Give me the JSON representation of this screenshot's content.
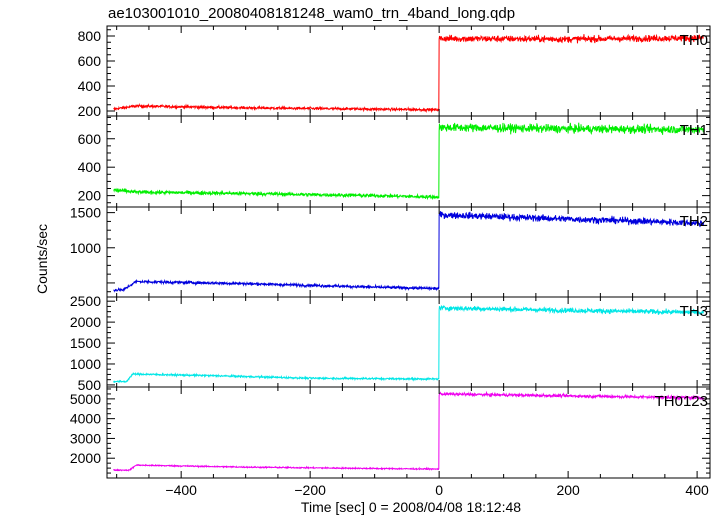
{
  "chart_data": {
    "type": "line",
    "title": "ae103001010_20080408181248_wam0_trn_4band_long.qdp",
    "xlabel": "Time [sec] 0 = 2008/04/08 18:12:48",
    "ylabel": "Counts/sec",
    "xlim": [
      -515,
      420
    ],
    "xticks": [
      -400,
      -200,
      0,
      200,
      400
    ],
    "xtick_labels": [
      "−400",
      "−200",
      "0",
      "200",
      "400"
    ],
    "step_time": 0,
    "start_time": -505,
    "end_time": 410,
    "grid": false,
    "panels": [
      {
        "name": "TH0",
        "color": "#ff0000",
        "ylim": [
          160,
          880
        ],
        "yticks": [
          200,
          400,
          600,
          800
        ],
        "pre_level": [
          [
            -505,
            215
          ],
          [
            -470,
            240
          ],
          [
            -300,
            225
          ],
          [
            -100,
            215
          ],
          [
            -1,
            210
          ]
        ],
        "post_level": [
          [
            0,
            780
          ],
          [
            200,
            775
          ],
          [
            410,
            785
          ]
        ],
        "noise_pre": 10,
        "noise_post": 25
      },
      {
        "name": "TH1",
        "color": "#00ee00",
        "ylim": [
          120,
          760
        ],
        "yticks": [
          200,
          400,
          600
        ],
        "pre_level": [
          [
            -505,
            240
          ],
          [
            -470,
            225
          ],
          [
            -300,
            215
          ],
          [
            -100,
            200
          ],
          [
            -1,
            190
          ]
        ],
        "post_level": [
          [
            0,
            680
          ],
          [
            200,
            670
          ],
          [
            410,
            665
          ]
        ],
        "noise_pre": 12,
        "noise_post": 28
      },
      {
        "name": "TH2",
        "color": "#0000dd",
        "ylim": [
          300,
          1580
        ],
        "yticks": [
          500,
          1000,
          1500
        ],
        "tick_labels_override": {
          "500": ""
        },
        "pre_level": [
          [
            -505,
            400
          ],
          [
            -490,
            400
          ],
          [
            -470,
            520
          ],
          [
            -300,
            490
          ],
          [
            -100,
            440
          ],
          [
            -1,
            420
          ]
        ],
        "post_level": [
          [
            0,
            1470
          ],
          [
            200,
            1410
          ],
          [
            410,
            1350
          ]
        ],
        "noise_pre": 18,
        "noise_post": 45
      },
      {
        "name": "TH3",
        "color": "#00e6e6",
        "ylim": [
          450,
          2600
        ],
        "yticks": [
          500,
          1000,
          1500,
          2000,
          2500
        ],
        "pre_level": [
          [
            -505,
            580
          ],
          [
            -485,
            580
          ],
          [
            -475,
            760
          ],
          [
            -350,
            720
          ],
          [
            -200,
            660
          ],
          [
            -1,
            640
          ]
        ],
        "post_level": [
          [
            0,
            2340
          ],
          [
            200,
            2280
          ],
          [
            410,
            2230
          ]
        ],
        "noise_pre": 20,
        "noise_post": 55
      },
      {
        "name": "TH0123",
        "color": "#ee00ee",
        "ylim": [
          1000,
          5600
        ],
        "yticks": [
          2000,
          3000,
          4000,
          5000
        ],
        "pre_level": [
          [
            -505,
            1400
          ],
          [
            -480,
            1400
          ],
          [
            -470,
            1650
          ],
          [
            -300,
            1550
          ],
          [
            -100,
            1480
          ],
          [
            -1,
            1450
          ]
        ],
        "post_level": [
          [
            0,
            5250
          ],
          [
            200,
            5150
          ],
          [
            410,
            5050
          ]
        ],
        "noise_pre": 30,
        "noise_post": 70
      }
    ]
  }
}
